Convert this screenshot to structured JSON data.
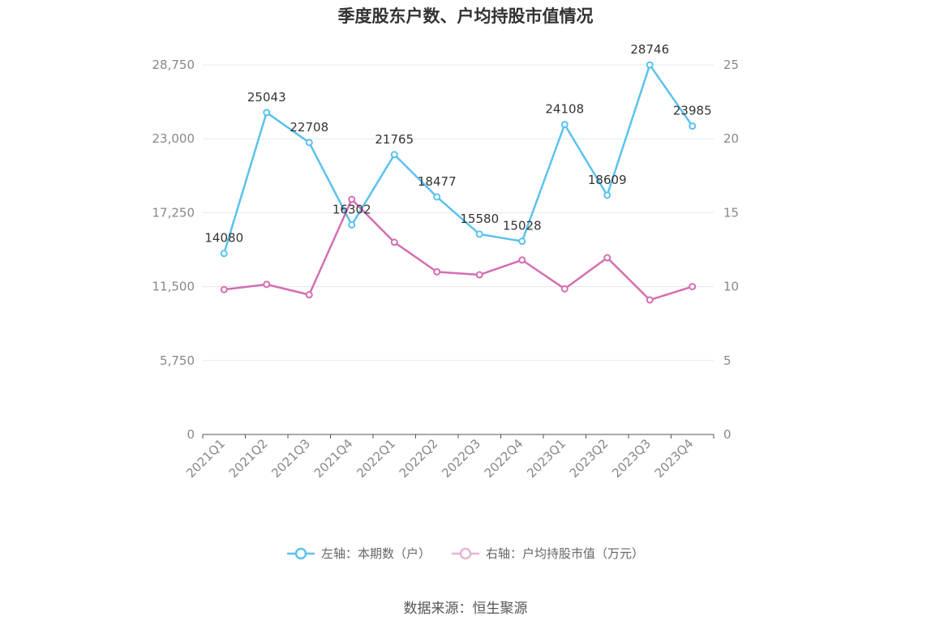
{
  "chart_data": {
    "type": "line",
    "title": "季度股东户数、户均持股市值情况",
    "categories": [
      "2021Q1",
      "2021Q2",
      "2021Q3",
      "2021Q4",
      "2022Q1",
      "2022Q2",
      "2022Q3",
      "2022Q4",
      "2023Q1",
      "2023Q2",
      "2023Q3",
      "2023Q4"
    ],
    "left_axis": {
      "min": 0,
      "max": 28750,
      "ticks": [
        0,
        5750,
        11500,
        17250,
        23000,
        28750
      ],
      "tick_labels": [
        "0",
        "5,750",
        "11,500",
        "17,250",
        "23,000",
        "28,750"
      ]
    },
    "right_axis": {
      "min": 0,
      "max": 25,
      "ticks": [
        0,
        5,
        10,
        15,
        20,
        25
      ],
      "tick_labels": [
        "0",
        "5",
        "10",
        "15",
        "20",
        "25"
      ]
    },
    "grid": true,
    "legend_position": "bottom",
    "series": [
      {
        "name": "左轴：本期数（户）",
        "axis": "left",
        "color": "#5bc2ee",
        "values": [
          14080,
          25043,
          22708,
          16302,
          21765,
          18477,
          15580,
          15028,
          24108,
          18609,
          28746,
          23985
        ],
        "labels": [
          "14080",
          "25043",
          "22708",
          "16302",
          "21765",
          "18477",
          "15580",
          "15028",
          "24108",
          "18609",
          "28746",
          "23985"
        ]
      },
      {
        "name": "右轴：户均持股市值（万元）",
        "axis": "right",
        "color": "#d46eb2",
        "values": [
          9.8,
          10.15,
          9.45,
          15.9,
          13.0,
          11.0,
          10.8,
          11.8,
          9.85,
          11.95,
          9.1,
          10.0
        ]
      }
    ]
  },
  "source": "数据来源：恒生聚源"
}
